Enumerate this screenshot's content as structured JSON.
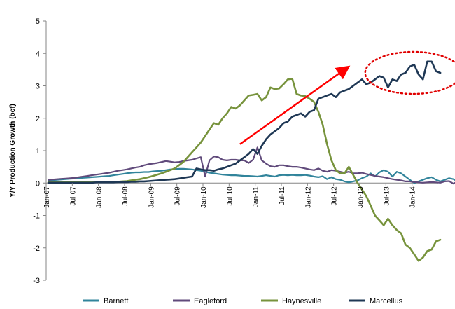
{
  "chart_data": {
    "type": "line",
    "title": "",
    "ylabel": "Y/Y Production Growth (bcf)",
    "xlabel": "",
    "ylim": [
      -3,
      5
    ],
    "yticks": [
      -3,
      -2,
      -1,
      0,
      1,
      2,
      3,
      4,
      5
    ],
    "x_start": "Jan-07",
    "x_end": "Mar-14",
    "xtick_labels": [
      "Jan-07",
      "Jul-07",
      "Jan-08",
      "Jul-08",
      "Jan-09",
      "Jul-09",
      "Jan-10",
      "Jul-10",
      "Jan-11",
      "Jul-11",
      "Jan-12",
      "Jul-12",
      "Jan-13",
      "Jul-13",
      "Jan-14"
    ],
    "legend_position": "bottom",
    "grid": false,
    "annotations": [
      "red-arrow-upward-trend",
      "red-dotted-ellipse-marcellus-peak"
    ],
    "series": [
      {
        "name": "Barnett",
        "color": "#31849b",
        "values": [
          0.08,
          0.09,
          0.1,
          0.11,
          0.12,
          0.13,
          0.14,
          0.15,
          0.16,
          0.17,
          0.18,
          0.19,
          0.2,
          0.21,
          0.22,
          0.24,
          0.26,
          0.28,
          0.3,
          0.32,
          0.33,
          0.33,
          0.34,
          0.34,
          0.36,
          0.37,
          0.38,
          0.4,
          0.42,
          0.43,
          0.44,
          0.44,
          0.43,
          0.42,
          0.4,
          0.38,
          0.35,
          0.32,
          0.3,
          0.28,
          0.26,
          0.25,
          0.24,
          0.24,
          0.23,
          0.22,
          0.22,
          0.21,
          0.2,
          0.22,
          0.24,
          0.22,
          0.2,
          0.24,
          0.25,
          0.24,
          0.25,
          0.24,
          0.24,
          0.25,
          0.23,
          0.2,
          0.18,
          0.21,
          0.12,
          0.18,
          0.12,
          0.1,
          0.05,
          0.02,
          0.05,
          0.08,
          0.15,
          0.2,
          0.3,
          0.2,
          0.33,
          0.4,
          0.35,
          0.2,
          0.35,
          0.3,
          0.2,
          0.1,
          0.0,
          0.05,
          0.1,
          0.15,
          0.18,
          0.1,
          0.05,
          0.1,
          0.15,
          0.12,
          0.05,
          0.02
        ]
      },
      {
        "name": "Eagleford",
        "color": "#604a7b",
        "values": [
          0.1,
          0.11,
          0.12,
          0.13,
          0.14,
          0.15,
          0.16,
          0.18,
          0.2,
          0.22,
          0.24,
          0.26,
          0.28,
          0.3,
          0.32,
          0.35,
          0.38,
          0.4,
          0.42,
          0.45,
          0.48,
          0.5,
          0.55,
          0.58,
          0.6,
          0.62,
          0.65,
          0.68,
          0.66,
          0.64,
          0.65,
          0.68,
          0.7,
          0.72,
          0.76,
          0.8,
          0.2,
          0.7,
          0.82,
          0.8,
          0.72,
          0.7,
          0.72,
          0.72,
          0.7,
          0.7,
          0.62,
          0.72,
          1.1,
          0.7,
          0.6,
          0.52,
          0.5,
          0.55,
          0.55,
          0.52,
          0.5,
          0.5,
          0.48,
          0.45,
          0.42,
          0.4,
          0.45,
          0.38,
          0.35,
          0.4,
          0.38,
          0.35,
          0.32,
          0.35,
          0.3,
          0.3,
          0.32,
          0.28,
          0.25,
          0.22,
          0.2,
          0.18,
          0.15,
          0.12,
          0.1,
          0.08,
          0.05,
          0.05,
          0.03,
          0.02,
          0.01,
          0.02,
          0.03,
          0.02,
          0.01,
          0.05,
          0.06,
          -0.02,
          0.05,
          0.08
        ]
      },
      {
        "name": "Haynesville",
        "color": "#77933c",
        "values": [
          0.02,
          0.02,
          0.02,
          0.02,
          0.02,
          0.02,
          0.02,
          0.02,
          0.02,
          0.02,
          0.03,
          0.03,
          0.03,
          0.03,
          0.03,
          0.04,
          0.04,
          0.05,
          0.06,
          0.08,
          0.1,
          0.12,
          0.15,
          0.18,
          0.22,
          0.26,
          0.3,
          0.35,
          0.4,
          0.45,
          0.55,
          0.65,
          0.8,
          0.95,
          1.1,
          1.25,
          1.45,
          1.65,
          1.85,
          1.8,
          2.0,
          2.15,
          2.35,
          2.3,
          2.4,
          2.55,
          2.7,
          2.72,
          2.75,
          2.55,
          2.65,
          2.95,
          2.9,
          2.92,
          3.05,
          3.2,
          3.22,
          2.75,
          2.7,
          2.68,
          2.6,
          2.5,
          2.2,
          1.8,
          1.2,
          0.7,
          0.4,
          0.3,
          0.3,
          0.5,
          0.25,
          0.0,
          -0.2,
          -0.4,
          -0.7,
          -1.0,
          -1.15,
          -1.3,
          -1.1,
          -1.3,
          -1.45,
          -1.55,
          -1.9,
          -2.0,
          -2.2,
          -2.4,
          -2.3,
          -2.1,
          -2.05,
          -1.8,
          -1.75
        ]
      },
      {
        "name": "Marcellus",
        "color": "#1f3855",
        "values": [
          0.01,
          0.01,
          0.01,
          0.01,
          0.01,
          0.01,
          0.01,
          0.01,
          0.01,
          0.01,
          0.01,
          0.02,
          0.02,
          0.02,
          0.02,
          0.02,
          0.03,
          0.03,
          0.03,
          0.04,
          0.04,
          0.05,
          0.05,
          0.06,
          0.07,
          0.08,
          0.09,
          0.1,
          0.11,
          0.12,
          0.14,
          0.16,
          0.18,
          0.2,
          0.45,
          0.42,
          0.4,
          0.4,
          0.38,
          0.42,
          0.45,
          0.5,
          0.55,
          0.6,
          0.7,
          0.8,
          0.9,
          1.05,
          0.9,
          1.15,
          1.35,
          1.5,
          1.6,
          1.7,
          1.85,
          1.9,
          2.05,
          2.1,
          2.15,
          2.05,
          2.2,
          2.25,
          2.6,
          2.65,
          2.7,
          2.75,
          2.65,
          2.8,
          2.85,
          2.9,
          3.0,
          3.1,
          3.2,
          3.05,
          3.1,
          3.2,
          3.3,
          3.25,
          2.95,
          3.2,
          3.15,
          3.35,
          3.4,
          3.6,
          3.65,
          3.35,
          3.2,
          3.75,
          3.75,
          3.45,
          3.4
        ]
      }
    ]
  }
}
